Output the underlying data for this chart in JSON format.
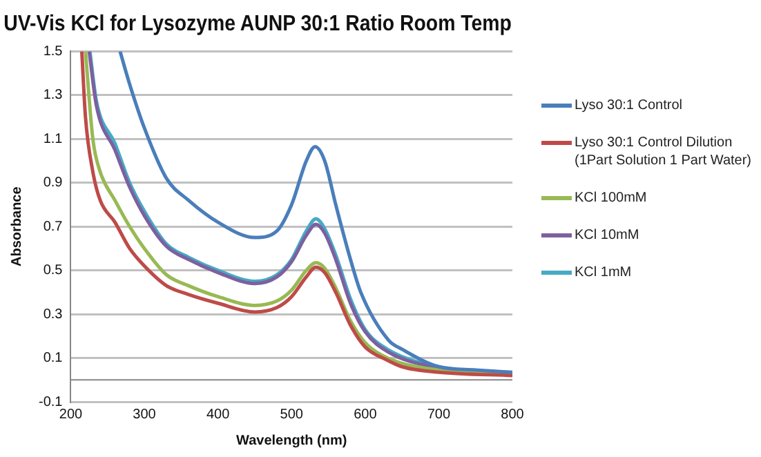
{
  "chart_data": {
    "type": "line",
    "title": "UV-Vis KCl for Lysozyme AUNP 30:1 Ratio Room Temp",
    "xlabel": "Wavelength (nm)",
    "ylabel": "Absorbance",
    "xlim": [
      200,
      800
    ],
    "xticks": [
      200,
      300,
      400,
      500,
      600,
      700,
      800
    ],
    "ylim": [
      -0.1,
      1.5
    ],
    "yticks": [
      -0.1,
      0.1,
      0.3,
      0.5,
      0.7,
      0.9,
      1.1,
      1.3,
      1.5
    ],
    "grid": "y",
    "legend": "right",
    "marker": "none",
    "line_style": "solid",
    "ref_lines": [
      {
        "axis": "y",
        "value": 0,
        "color": "#868686"
      }
    ],
    "series": [
      {
        "name": "Lyso 30:1 Control",
        "color": "#4a7ebb",
        "x": [
          267,
          280,
          300,
          330,
          360,
          400,
          450,
          480,
          500,
          520,
          532,
          545,
          560,
          580,
          594,
          632,
          650,
          700,
          750,
          800
        ],
        "values": [
          1.5,
          1.35,
          1.15,
          0.92,
          0.82,
          0.72,
          0.65,
          0.68,
          0.8,
          1.0,
          1.065,
          1.0,
          0.8,
          0.55,
          0.4,
          0.18,
          0.14,
          0.06,
          0.045,
          0.035
        ]
      },
      {
        "name": "Lyso 30:1 Control Dilution (1Part Solution 1 Part Water)",
        "color": "#be4b48",
        "x": [
          215,
          220,
          230,
          240,
          260,
          280,
          300,
          330,
          360,
          400,
          450,
          480,
          500,
          520,
          533,
          545,
          560,
          580,
          600,
          630,
          650,
          700,
          800
        ],
        "values": [
          1.5,
          1.2,
          0.95,
          0.82,
          0.72,
          0.6,
          0.52,
          0.43,
          0.39,
          0.35,
          0.31,
          0.33,
          0.38,
          0.47,
          0.515,
          0.49,
          0.4,
          0.25,
          0.15,
          0.09,
          0.06,
          0.035,
          0.02
        ]
      },
      {
        "name": "KCl 100mM",
        "color": "#98b954",
        "x": [
          220,
          230,
          240,
          260,
          280,
          300,
          330,
          360,
          400,
          450,
          480,
          500,
          520,
          533,
          545,
          560,
          580,
          600,
          630,
          700,
          800
        ],
        "values": [
          1.5,
          1.1,
          0.95,
          0.82,
          0.7,
          0.6,
          0.48,
          0.43,
          0.38,
          0.34,
          0.36,
          0.41,
          0.5,
          0.535,
          0.51,
          0.42,
          0.27,
          0.17,
          0.1,
          0.045,
          0.025
        ]
      },
      {
        "name": "KCl 10mM",
        "color": "#7d60a0",
        "x": [
          225,
          235,
          260,
          280,
          300,
          330,
          360,
          400,
          450,
          480,
          500,
          520,
          533,
          545,
          560,
          580,
          600,
          630,
          700,
          800
        ],
        "values": [
          1.5,
          1.25,
          1.05,
          0.88,
          0.75,
          0.61,
          0.55,
          0.49,
          0.44,
          0.47,
          0.54,
          0.66,
          0.71,
          0.67,
          0.55,
          0.35,
          0.22,
          0.13,
          0.055,
          0.03
        ]
      },
      {
        "name": "KCl 1mM",
        "color": "#46aac5",
        "x": [
          226,
          235,
          260,
          280,
          300,
          330,
          360,
          400,
          450,
          480,
          500,
          520,
          533,
          545,
          560,
          580,
          600,
          630,
          700,
          800
        ],
        "values": [
          1.5,
          1.27,
          1.08,
          0.9,
          0.77,
          0.62,
          0.56,
          0.5,
          0.45,
          0.48,
          0.55,
          0.68,
          0.735,
          0.69,
          0.57,
          0.37,
          0.23,
          0.14,
          0.06,
          0.03
        ]
      }
    ]
  }
}
